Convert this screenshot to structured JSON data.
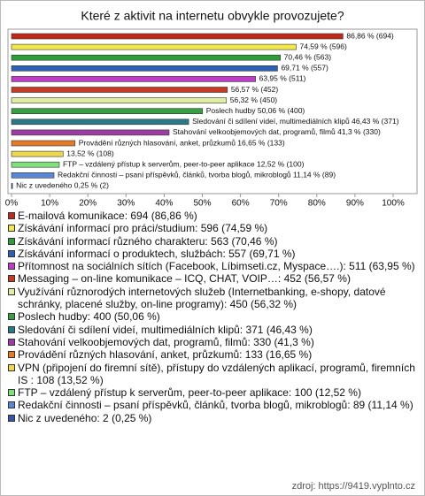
{
  "chart_data": {
    "type": "hbar",
    "title": "Které z aktivit na internetu obvykle provozujete?",
    "legend": [
      "E-mailová komunikace: 694 (86,86 %)",
      "Získávání informací pro práci/studium: 596 (74,59 %)",
      "Získávání informací různého charakteru: 563 (70,46 %)",
      "Získávání informací o produktech, službách: 557 (69,71 %)",
      "Přítomnost na sociálních sítích (Facebook, Líbimseti.cz, Myspace….): 511 (63,95 %)",
      "Messaging – on-line komunikace – ICQ, CHAT, VOIP…: 452 (56,57 %)",
      "Využívání různorodých internetových služeb (Internetbanking, e-shopy, datové schránky, placené služby, on-line programy): 450 (56,32 %)",
      "Poslech hudby: 400 (50,06 %)",
      "Sledování či sdílení videí, multimediálních klipů: 371 (46,43 %)",
      "Stahování velkoobjemových dat, programů, filmů: 330 (41,3 %)",
      "Provádění různých hlasování, anket, průzkumů: 133 (16,65 %)",
      "VPN (připojení do firemní sítě), přístupy do vzdálených aplikací, programů, firemních IS : 108 (13,52 %)",
      "FTP – vzdálený přístup k serverům, peer-to-peer aplikace: 100 (12,52 %)",
      "Redakční činnosti – psaní příspěvků, článků, tvorba blogů, mikroblogů: 89 (11,14 %)",
      "Nic z uvedeného: 2 (0,25 %)"
    ],
    "values": [
      86.86,
      74.59,
      70.46,
      69.71,
      63.95,
      56.57,
      56.32,
      50.06,
      46.43,
      41.3,
      16.65,
      13.52,
      12.52,
      11.14,
      0.25
    ],
    "value_labels": [
      "86,86 % (694)",
      "74,59 % (596)",
      "70,46 % (563)",
      "69,71 % (557)",
      "63,95 % (511)",
      "56,57 % (452)",
      "56,32 % (450)",
      "Poslech hudby 50,06 % (400)",
      "Sledování či sdílení videí, multimediálních klipů 46,43 % (371)",
      "Stahování velkoobjemových dat, programů, filmů 41,3 % (330)",
      "Provádění různých hlasování, anket, průzkumů 16,65 % (133)",
      "13,52 % (108)",
      "FTP – vzdálený přístup k serverům, peer-to-peer aplikace 12,52 % (100)",
      "Redakční činnosti – psaní příspěvků, článků, tvorba blogů, mikroblogů 11,14 % (89)",
      "Nic z uvedeného 0,25 % (2)"
    ],
    "colors": [
      "#c0281c",
      "#f2e84a",
      "#2e9e3a",
      "#2d5fb4",
      "#c03cc8",
      "#c83a22",
      "#dfeea0",
      "#36a040",
      "#2a7888",
      "#9c3ca4",
      "#e47a26",
      "#eed84a",
      "#7ee27a",
      "#5a86d6",
      "#3354a8"
    ],
    "xlim": [
      0,
      100
    ],
    "xticks": [
      {
        "value": 0,
        "label": "0%"
      },
      {
        "value": 10,
        "label": "10%"
      },
      {
        "value": 20,
        "label": "20%"
      },
      {
        "value": 30,
        "label": "30%"
      },
      {
        "value": 40,
        "label": "40%"
      },
      {
        "value": 50,
        "label": "50%"
      },
      {
        "value": 60,
        "label": "60%"
      },
      {
        "value": 70,
        "label": "70%"
      },
      {
        "value": 80,
        "label": "80%"
      },
      {
        "value": 90,
        "label": "90%"
      },
      {
        "value": 100,
        "label": "100%"
      }
    ],
    "source": "zdroj: https://9419.vyplnto.cz"
  }
}
